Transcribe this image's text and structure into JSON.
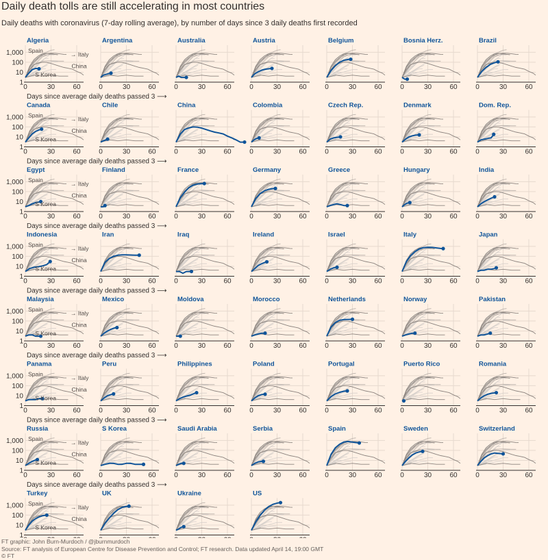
{
  "title": "Daily death tolls are still accelerating in most countries",
  "subtitle": "Daily deaths with coronavirus (7-day rolling average), by number of days since 3 daily deaths first recorded",
  "footer": {
    "credit": "FT graphic: John Burn-Murdoch / @jburnmurdoch",
    "source": "Source: FT analysis of European Centre for Disease Prevention and Control; FT research. Data updated April 14, 19:00 GMT",
    "copyright": "© FT"
  },
  "colors": {
    "background": "#fff1e5",
    "highlight": "#0f5499",
    "context": "#d6d0cb",
    "reference": "#8a837e",
    "axis": "#33302e"
  },
  "chart_data": {
    "type": "line",
    "layout": "small-multiples",
    "x_axis_label": "Days since average daily deaths passed 3",
    "y_scale": "log",
    "x_ticks": [
      0,
      30,
      60
    ],
    "y_ticks": [
      1,
      10,
      100,
      1000
    ],
    "y_tick_labels": [
      "1",
      "10",
      "100",
      "1,000"
    ],
    "xlim": [
      0,
      68
    ],
    "ylim": [
      1,
      2000
    ],
    "reference_labels": [
      "Spain",
      "Italy",
      "S Korea",
      "China"
    ],
    "countries": [
      {
        "name": "Algeria",
        "x": [
          0,
          4,
          8,
          12,
          16
        ],
        "y": [
          3,
          8,
          18,
          24,
          22
        ]
      },
      {
        "name": "Argentina",
        "x": [
          0,
          3,
          6,
          9,
          12
        ],
        "y": [
          3,
          5,
          6,
          7,
          8
        ]
      },
      {
        "name": "Australia",
        "x": [
          0,
          3,
          6,
          9,
          12
        ],
        "y": [
          3,
          4,
          3,
          3,
          3
        ]
      },
      {
        "name": "Austria",
        "x": [
          0,
          4,
          8,
          12,
          16,
          20,
          24
        ],
        "y": [
          3,
          7,
          11,
          16,
          20,
          22,
          24
        ]
      },
      {
        "name": "Belgium",
        "x": [
          0,
          5,
          10,
          15,
          20,
          25,
          28
        ],
        "y": [
          3,
          15,
          45,
          100,
          160,
          190,
          200
        ]
      },
      {
        "name": "Bosnia Herz.",
        "x": [
          0,
          3,
          6
        ],
        "y": [
          3,
          2,
          2
        ]
      },
      {
        "name": "Brazil",
        "x": [
          0,
          5,
          10,
          15,
          20,
          24
        ],
        "y": [
          3,
          12,
          30,
          60,
          90,
          110
        ]
      },
      {
        "name": "Canada",
        "x": [
          0,
          4,
          8,
          12,
          16,
          19
        ],
        "y": [
          3,
          8,
          20,
          35,
          50,
          60
        ]
      },
      {
        "name": "Chile",
        "x": [
          0,
          3,
          6,
          8
        ],
        "y": [
          3,
          4,
          5,
          6
        ]
      },
      {
        "name": "China",
        "x": [
          0,
          5,
          10,
          15,
          20,
          25,
          30,
          35,
          40,
          45,
          50,
          55,
          60,
          65,
          70,
          75,
          80
        ],
        "y": [
          3,
          20,
          55,
          80,
          100,
          95,
          75,
          55,
          40,
          30,
          25,
          20,
          12,
          8,
          5,
          3,
          3
        ]
      },
      {
        "name": "Colombia",
        "x": [
          0,
          3,
          6,
          9
        ],
        "y": [
          3,
          5,
          7,
          8
        ]
      },
      {
        "name": "Czech Rep.",
        "x": [
          0,
          4,
          8,
          12,
          16
        ],
        "y": [
          3,
          6,
          8,
          9,
          10
        ]
      },
      {
        "name": "Denmark",
        "x": [
          0,
          4,
          8,
          12,
          16,
          20
        ],
        "y": [
          3,
          6,
          10,
          13,
          15,
          16
        ]
      },
      {
        "name": "Dom. Rep.",
        "x": [
          0,
          4,
          8,
          12,
          16,
          19
        ],
        "y": [
          3,
          5,
          6,
          7,
          8,
          18
        ]
      },
      {
        "name": "Egypt",
        "x": [
          0,
          4,
          8,
          12,
          16,
          18
        ],
        "y": [
          3,
          4,
          6,
          8,
          9,
          10
        ]
      },
      {
        "name": "Finland",
        "x": [
          0,
          3,
          5
        ],
        "y": [
          3,
          3,
          4
        ]
      },
      {
        "name": "France",
        "x": [
          0,
          5,
          10,
          15,
          20,
          25,
          30,
          33
        ],
        "y": [
          3,
          25,
          90,
          250,
          450,
          580,
          640,
          650
        ]
      },
      {
        "name": "Germany",
        "x": [
          0,
          5,
          10,
          15,
          20,
          25,
          28
        ],
        "y": [
          3,
          20,
          60,
          120,
          170,
          200,
          210
        ]
      },
      {
        "name": "Greece",
        "x": [
          0,
          4,
          8,
          12,
          16,
          20,
          24
        ],
        "y": [
          3,
          4,
          5,
          6,
          5,
          4,
          4
        ]
      },
      {
        "name": "Hungary",
        "x": [
          0,
          3,
          6,
          9
        ],
        "y": [
          3,
          5,
          7,
          8
        ]
      },
      {
        "name": "India",
        "x": [
          0,
          4,
          8,
          12,
          16,
          20
        ],
        "y": [
          3,
          6,
          10,
          15,
          22,
          30
        ]
      },
      {
        "name": "Indonesia",
        "x": [
          0,
          5,
          10,
          15,
          20,
          25,
          29
        ],
        "y": [
          3,
          6,
          8,
          9,
          11,
          15,
          30
        ]
      },
      {
        "name": "Iran",
        "x": [
          0,
          5,
          10,
          15,
          20,
          25,
          30,
          35,
          40,
          45
        ],
        "y": [
          3,
          25,
          60,
          100,
          130,
          140,
          140,
          135,
          130,
          130
        ]
      },
      {
        "name": "Iraq",
        "x": [
          0,
          4,
          8,
          12,
          16,
          18
        ],
        "y": [
          3,
          3,
          2,
          3,
          3,
          3
        ]
      },
      {
        "name": "Ireland",
        "x": [
          0,
          4,
          8,
          12,
          16,
          18
        ],
        "y": [
          3,
          6,
          12,
          18,
          25,
          28
        ]
      },
      {
        "name": "Israel",
        "x": [
          0,
          4,
          8,
          12
        ],
        "y": [
          3,
          5,
          7,
          8
        ]
      },
      {
        "name": "Italy",
        "x": [
          0,
          5,
          10,
          15,
          20,
          25,
          30,
          35,
          40,
          45,
          48
        ],
        "y": [
          3,
          30,
          120,
          300,
          550,
          750,
          800,
          780,
          700,
          620,
          600
        ]
      },
      {
        "name": "Japan",
        "x": [
          0,
          4,
          8,
          12,
          16,
          20,
          22
        ],
        "y": [
          3,
          4,
          4,
          5,
          5,
          6,
          7
        ]
      },
      {
        "name": "Malaysia",
        "x": [
          0,
          4,
          8,
          12,
          16,
          18
        ],
        "y": [
          3,
          4,
          4,
          3,
          3,
          3
        ]
      },
      {
        "name": "Mexico",
        "x": [
          0,
          4,
          8,
          12,
          16,
          19
        ],
        "y": [
          3,
          6,
          10,
          15,
          20,
          22
        ]
      },
      {
        "name": "Moldova",
        "x": [
          0,
          3,
          5
        ],
        "y": [
          3,
          3,
          3
        ]
      },
      {
        "name": "Morocco",
        "x": [
          0,
          4,
          8,
          12,
          16
        ],
        "y": [
          3,
          4,
          5,
          6,
          6
        ]
      },
      {
        "name": "Netherlands",
        "x": [
          0,
          5,
          10,
          15,
          20,
          25,
          30
        ],
        "y": [
          3,
          25,
          70,
          120,
          140,
          145,
          150
        ]
      },
      {
        "name": "Norway",
        "x": [
          0,
          4,
          8,
          12,
          15
        ],
        "y": [
          3,
          4,
          5,
          6,
          6
        ]
      },
      {
        "name": "Pakistan",
        "x": [
          0,
          4,
          8,
          12,
          15
        ],
        "y": [
          3,
          4,
          4,
          5,
          6
        ]
      },
      {
        "name": "Panama",
        "x": [
          0,
          4,
          8,
          12,
          16,
          20
        ],
        "y": [
          3,
          4,
          4,
          4,
          5,
          5
        ]
      },
      {
        "name": "Peru",
        "x": [
          0,
          4,
          8,
          12,
          15
        ],
        "y": [
          3,
          6,
          10,
          13,
          15
        ]
      },
      {
        "name": "Philippines",
        "x": [
          0,
          4,
          8,
          12,
          16,
          20,
          24
        ],
        "y": [
          3,
          5,
          7,
          9,
          11,
          15,
          20
        ]
      },
      {
        "name": "Poland",
        "x": [
          0,
          4,
          8,
          12,
          16
        ],
        "y": [
          3,
          6,
          10,
          13,
          14
        ]
      },
      {
        "name": "Portugal",
        "x": [
          0,
          5,
          10,
          15,
          20,
          24
        ],
        "y": [
          3,
          8,
          15,
          22,
          28,
          30
        ]
      },
      {
        "name": "Puerto Rico",
        "x": [
          0,
          2
        ],
        "y": [
          3,
          3
        ]
      },
      {
        "name": "Romania",
        "x": [
          0,
          4,
          8,
          12,
          16,
          20,
          22
        ],
        "y": [
          3,
          6,
          10,
          14,
          17,
          19,
          20
        ]
      },
      {
        "name": "Russia",
        "x": [
          0,
          4,
          8,
          12,
          14
        ],
        "y": [
          3,
          5,
          8,
          11,
          12
        ]
      },
      {
        "name": "S Korea",
        "x": [
          0,
          5,
          10,
          15,
          20,
          25,
          30,
          35,
          40,
          45,
          50
        ],
        "y": [
          3,
          4,
          5,
          5,
          4,
          4,
          5,
          5,
          4,
          4,
          4
        ]
      },
      {
        "name": "Saudi Arabia",
        "x": [
          0,
          3,
          6,
          9
        ],
        "y": [
          3,
          4,
          5,
          5
        ]
      },
      {
        "name": "Serbia",
        "x": [
          0,
          4,
          8,
          12,
          14
        ],
        "y": [
          3,
          5,
          7,
          8,
          8
        ]
      },
      {
        "name": "Spain",
        "x": [
          0,
          5,
          10,
          15,
          20,
          25,
          30,
          35,
          38
        ],
        "y": [
          3,
          40,
          180,
          420,
          700,
          780,
          680,
          600,
          560
        ]
      },
      {
        "name": "Sweden",
        "x": [
          0,
          4,
          8,
          12,
          16,
          20,
          24
        ],
        "y": [
          3,
          8,
          18,
          35,
          55,
          70,
          80
        ]
      },
      {
        "name": "Switzerland",
        "x": [
          0,
          4,
          8,
          12,
          16,
          20,
          24,
          30
        ],
        "y": [
          3,
          8,
          18,
          30,
          45,
          55,
          50,
          45
        ]
      },
      {
        "name": "Turkey",
        "x": [
          0,
          4,
          8,
          12,
          16,
          20,
          25
        ],
        "y": [
          3,
          10,
          25,
          45,
          65,
          85,
          100
        ]
      },
      {
        "name": "UK",
        "x": [
          0,
          5,
          10,
          15,
          20,
          25,
          30,
          33
        ],
        "y": [
          3,
          15,
          50,
          150,
          350,
          600,
          750,
          800
        ]
      },
      {
        "name": "Ukraine",
        "x": [
          0,
          3,
          6,
          9
        ],
        "y": [
          3,
          4,
          6,
          7
        ]
      },
      {
        "name": "US",
        "x": [
          0,
          5,
          10,
          15,
          20,
          25,
          30,
          34
        ],
        "y": [
          3,
          20,
          90,
          300,
          700,
          1200,
          1600,
          1800
        ]
      }
    ]
  }
}
